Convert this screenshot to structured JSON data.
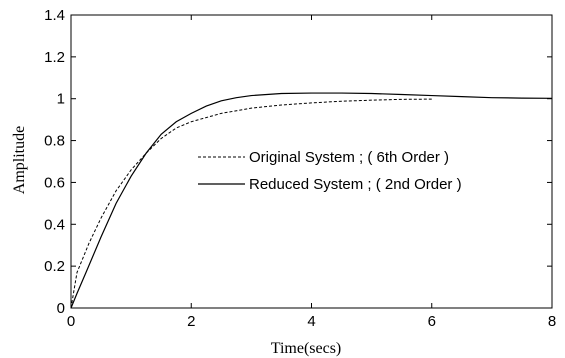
{
  "chart_data": {
    "type": "line",
    "title": "",
    "xlabel": "Time(secs)",
    "ylabel": "Amplitude",
    "xlim": [
      0,
      8
    ],
    "ylim": [
      0,
      1.4
    ],
    "xticks": [
      0,
      2,
      4,
      6,
      8
    ],
    "xtick_labels": [
      "0",
      "2",
      "4",
      "6",
      "8"
    ],
    "yticks": [
      0,
      0.2,
      0.4,
      0.6,
      0.8,
      1.0,
      1.2,
      1.4
    ],
    "ytick_labels": [
      "0",
      "0.2",
      "0.4",
      "0.6",
      "0.8",
      "1",
      "1.2",
      "1.4"
    ],
    "grid": false,
    "legend_placement": "center-right",
    "series": [
      {
        "name": "Original System ; ( 6th Order )",
        "style": "dashed",
        "color": "#000000",
        "x": [
          0,
          0.1,
          0.2,
          0.3,
          0.5,
          0.75,
          1.0,
          1.25,
          1.5,
          1.75,
          2.0,
          2.5,
          3.0,
          3.5,
          4.0,
          4.5,
          5.0,
          5.5,
          6.0
        ],
        "y": [
          0.0,
          0.17,
          0.24,
          0.31,
          0.43,
          0.56,
          0.66,
          0.74,
          0.81,
          0.86,
          0.89,
          0.93,
          0.955,
          0.97,
          0.98,
          0.988,
          0.993,
          0.997,
          0.998
        ]
      },
      {
        "name": "Reduced System ; ( 2nd Order )",
        "style": "solid",
        "color": "#000000",
        "x": [
          0,
          0.1,
          0.25,
          0.5,
          0.75,
          1.0,
          1.25,
          1.5,
          1.75,
          2.0,
          2.25,
          2.5,
          2.75,
          3.0,
          3.5,
          4.0,
          4.5,
          5.0,
          5.5,
          6.0,
          6.5,
          7.0,
          7.5,
          8.0
        ],
        "y": [
          0.0,
          0.07,
          0.17,
          0.34,
          0.5,
          0.63,
          0.74,
          0.83,
          0.89,
          0.93,
          0.965,
          0.99,
          1.005,
          1.015,
          1.025,
          1.027,
          1.027,
          1.025,
          1.02,
          1.015,
          1.01,
          1.005,
          1.003,
          1.002
        ]
      }
    ]
  }
}
